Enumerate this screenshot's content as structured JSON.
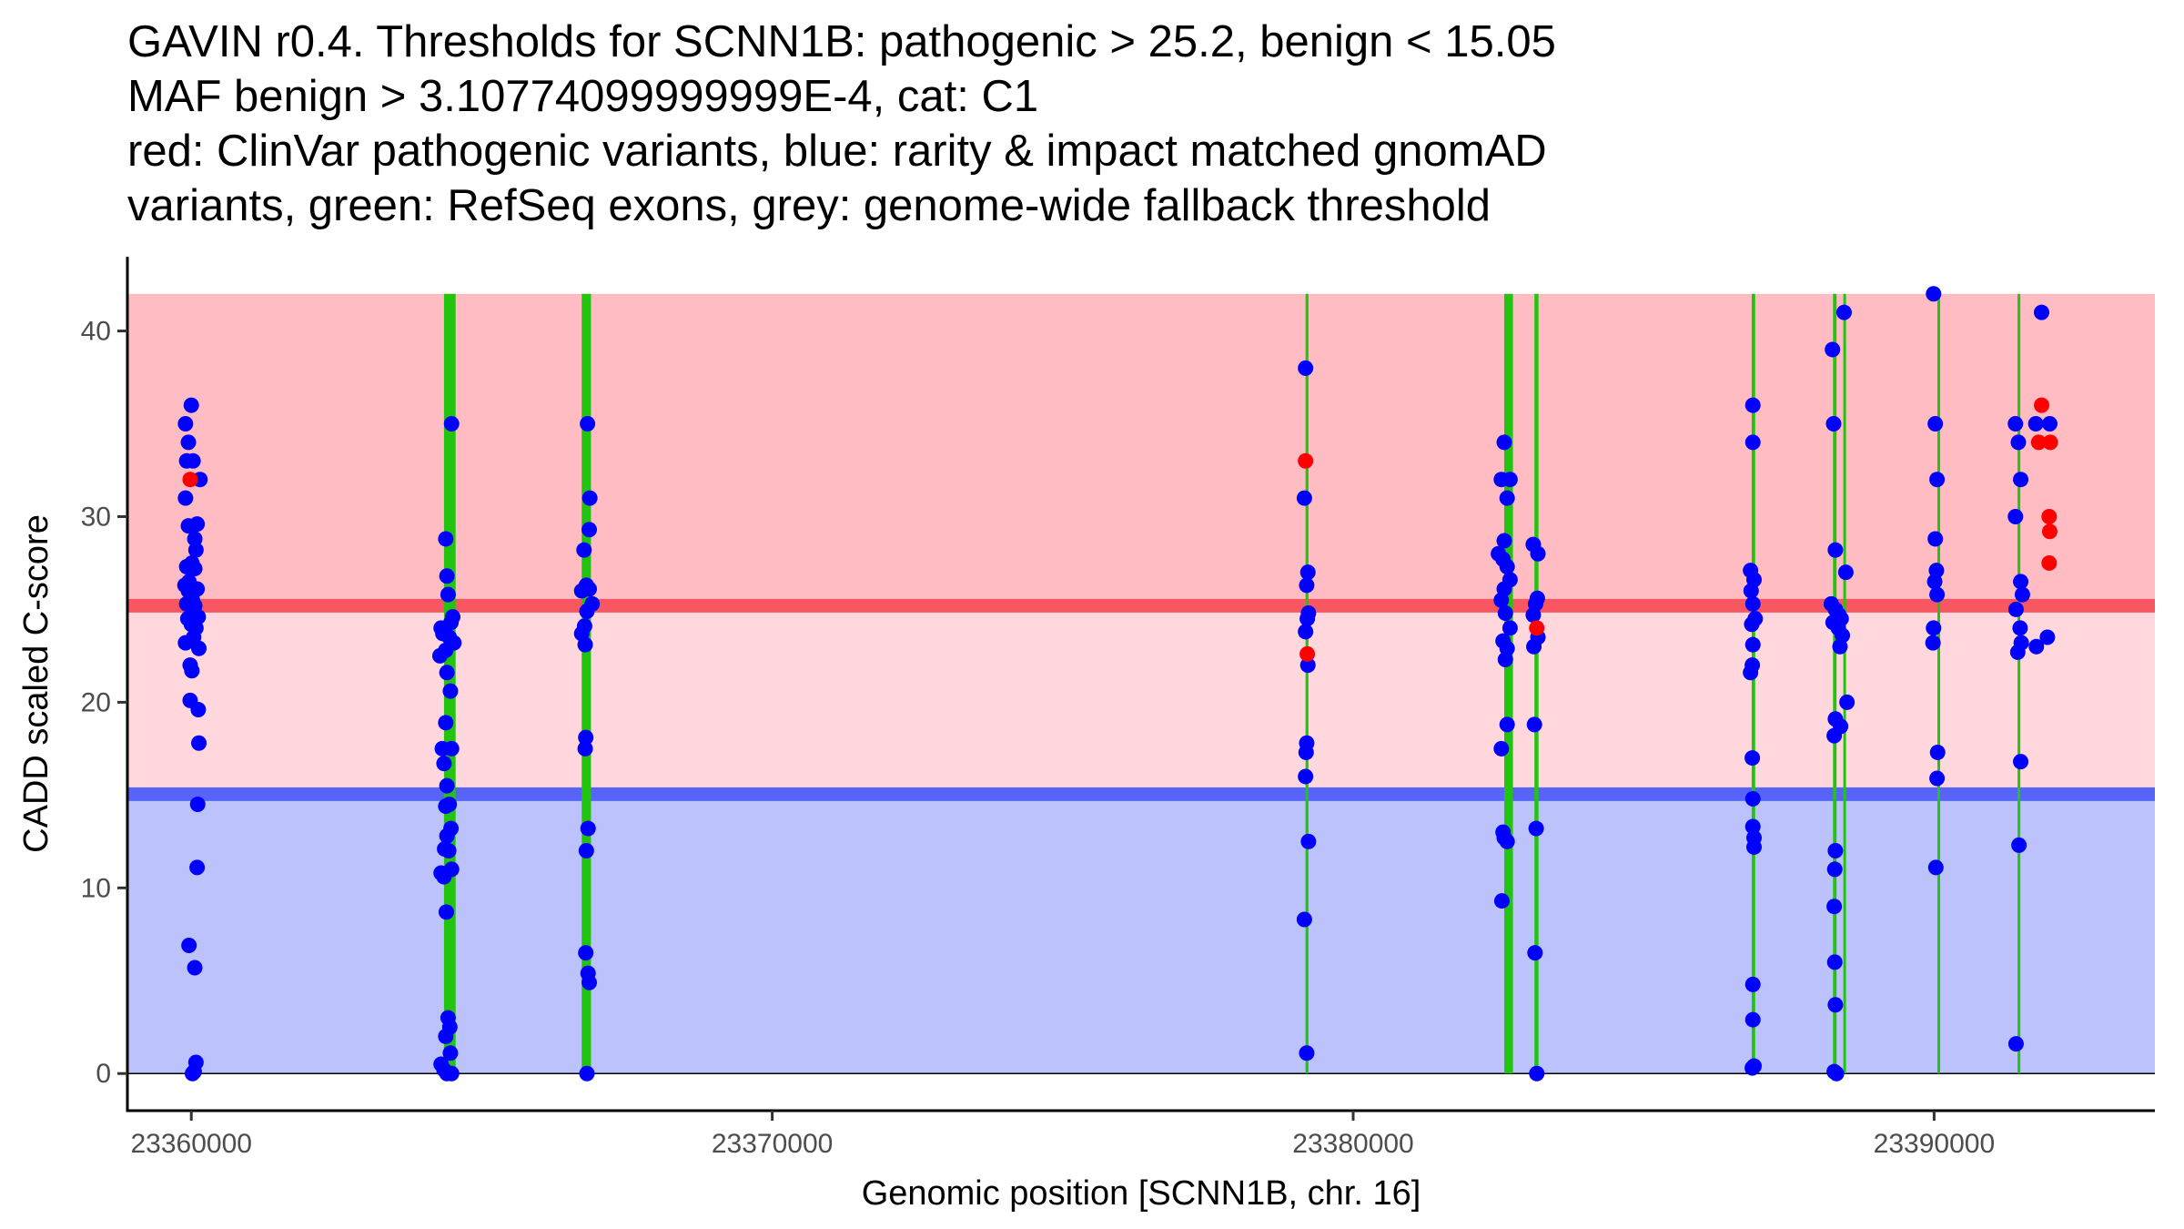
{
  "chart_data": {
    "type": "scatter",
    "title_lines": [
      "GAVIN r0.4. Thresholds for SCNN1B: pathogenic > 25.2, benign < 15.05",
      "MAF benign > 3.10774099999999E-4, cat: C1",
      "red: ClinVar pathogenic variants, blue: rarity & impact matched gnomAD",
      "variants, green: RefSeq exons, grey: genome-wide fallback threshold"
    ],
    "xlabel": "Genomic position [SCNN1B, chr. 16]",
    "ylabel": "CADD scaled C-score",
    "xlim": [
      23358900,
      23393800
    ],
    "ylim": [
      -2,
      44
    ],
    "x_ticks": [
      23360000,
      23370000,
      23380000,
      23390000
    ],
    "x_tick_labels": [
      "23360000",
      "23370000",
      "23380000",
      "23390000"
    ],
    "y_ticks": [
      0,
      10,
      20,
      30,
      40
    ],
    "y_tick_labels": [
      "0",
      "10",
      "20",
      "30",
      "40"
    ],
    "thresholds": {
      "pathogenic": 25.2,
      "benign": 15.05
    },
    "bands": [
      {
        "name": "pathogenic-zone",
        "y0": 25.2,
        "y1": 42,
        "color": "#ffbcc2"
      },
      {
        "name": "intermediate-zone",
        "y0": 15.05,
        "y1": 25.2,
        "color": "#ffd7dc"
      },
      {
        "name": "benign-zone",
        "y0": 0,
        "y1": 15.05,
        "color": "#bcc2fb"
      }
    ],
    "threshold_lines": [
      {
        "name": "pathogenic-threshold-line",
        "y": 25.2,
        "color": "#f85661"
      },
      {
        "name": "benign-threshold-line",
        "y": 15.05,
        "color": "#5764f8"
      }
    ],
    "exon_color": "#22c40f",
    "exons": [
      {
        "start": 23364350,
        "end": 23364550
      },
      {
        "start": 23366720,
        "end": 23366880
      },
      {
        "start": 23379180,
        "end": 23379230
      },
      {
        "start": 23382600,
        "end": 23382750
      },
      {
        "start": 23383120,
        "end": 23383190
      },
      {
        "start": 23386860,
        "end": 23386920
      },
      {
        "start": 23388260,
        "end": 23388320
      },
      {
        "start": 23388440,
        "end": 23388480
      },
      {
        "start": 23390060,
        "end": 23390100
      },
      {
        "start": 23391440,
        "end": 23391480
      }
    ],
    "series": [
      {
        "name": "gnomAD matched variants",
        "color": "#0000ff",
        "points": [
          [
            23359900,
            35
          ],
          [
            23360000,
            36
          ],
          [
            23359950,
            34
          ],
          [
            23359920,
            33
          ],
          [
            23360030,
            33
          ],
          [
            23359900,
            31
          ],
          [
            23360150,
            32
          ],
          [
            23359950,
            29.5
          ],
          [
            23360100,
            29.6
          ],
          [
            23360060,
            28.8
          ],
          [
            23360080,
            28.2
          ],
          [
            23360010,
            27.5
          ],
          [
            23359920,
            27.3
          ],
          [
            23360060,
            27.2
          ],
          [
            23359960,
            26.5
          ],
          [
            23359890,
            26.3
          ],
          [
            23359950,
            26
          ],
          [
            23360100,
            26.1
          ],
          [
            23360020,
            25.5
          ],
          [
            23359920,
            25.3
          ],
          [
            23360060,
            25.2
          ],
          [
            23360120,
            24.6
          ],
          [
            23359940,
            24.5
          ],
          [
            23360000,
            24.2
          ],
          [
            23360080,
            24
          ],
          [
            23359900,
            23.2
          ],
          [
            23360040,
            23.5
          ],
          [
            23360130,
            22.9
          ],
          [
            23359980,
            22
          ],
          [
            23360010,
            21.7
          ],
          [
            23359980,
            20.1
          ],
          [
            23360120,
            19.6
          ],
          [
            23360130,
            17.8
          ],
          [
            23360110,
            14.5
          ],
          [
            23360100,
            11.1
          ],
          [
            23359960,
            6.9
          ],
          [
            23360060,
            5.7
          ],
          [
            23360080,
            0.6
          ],
          [
            23360050,
            0.1
          ],
          [
            23360020,
            0
          ],
          [
            23364480,
            35
          ],
          [
            23364380,
            28.8
          ],
          [
            23364400,
            26.8
          ],
          [
            23364420,
            25.8
          ],
          [
            23364500,
            24.6
          ],
          [
            23364470,
            24.3
          ],
          [
            23364300,
            24
          ],
          [
            23364330,
            23.7
          ],
          [
            23364440,
            23.5
          ],
          [
            23364520,
            23.2
          ],
          [
            23364380,
            22.8
          ],
          [
            23364280,
            22.5
          ],
          [
            23364400,
            21.6
          ],
          [
            23364460,
            20.6
          ],
          [
            23364380,
            18.9
          ],
          [
            23364320,
            17.5
          ],
          [
            23364480,
            17.5
          ],
          [
            23364350,
            16.7
          ],
          [
            23364400,
            15.5
          ],
          [
            23364440,
            14.5
          ],
          [
            23364380,
            14.4
          ],
          [
            23364470,
            13.2
          ],
          [
            23364400,
            12.8
          ],
          [
            23364360,
            12.1
          ],
          [
            23364430,
            12
          ],
          [
            23364300,
            10.8
          ],
          [
            23364350,
            10.6
          ],
          [
            23364480,
            11
          ],
          [
            23364390,
            8.7
          ],
          [
            23364420,
            3
          ],
          [
            23364450,
            2.5
          ],
          [
            23364380,
            2
          ],
          [
            23364460,
            1.1
          ],
          [
            23364300,
            0.5
          ],
          [
            23364350,
            0.2
          ],
          [
            23364400,
            0
          ],
          [
            23364480,
            0
          ],
          [
            23366820,
            35
          ],
          [
            23366860,
            31
          ],
          [
            23366850,
            29.3
          ],
          [
            23366760,
            28.2
          ],
          [
            23366800,
            26.3
          ],
          [
            23366850,
            26.1
          ],
          [
            23366720,
            26
          ],
          [
            23366900,
            25.3
          ],
          [
            23366810,
            24.9
          ],
          [
            23366770,
            24.1
          ],
          [
            23366720,
            23.7
          ],
          [
            23366780,
            23.1
          ],
          [
            23366790,
            18.1
          ],
          [
            23366780,
            17.5
          ],
          [
            23366830,
            13.2
          ],
          [
            23366800,
            12
          ],
          [
            23366790,
            6.5
          ],
          [
            23366830,
            5.4
          ],
          [
            23366850,
            4.9
          ],
          [
            23366810,
            0
          ],
          [
            23379180,
            38
          ],
          [
            23379160,
            31
          ],
          [
            23379220,
            27
          ],
          [
            23379200,
            26.3
          ],
          [
            23379230,
            24.8
          ],
          [
            23379210,
            24.5
          ],
          [
            23379180,
            23.8
          ],
          [
            23379220,
            22
          ],
          [
            23379200,
            17.8
          ],
          [
            23379190,
            17.3
          ],
          [
            23379180,
            16
          ],
          [
            23379230,
            12.5
          ],
          [
            23379160,
            8.3
          ],
          [
            23379200,
            1.1
          ],
          [
            23382600,
            34
          ],
          [
            23382550,
            32
          ],
          [
            23382700,
            32
          ],
          [
            23382650,
            31
          ],
          [
            23382600,
            28.7
          ],
          [
            23382500,
            28
          ],
          [
            23382580,
            27.7
          ],
          [
            23382650,
            27.3
          ],
          [
            23382700,
            26.6
          ],
          [
            23382600,
            26.1
          ],
          [
            23382550,
            25.5
          ],
          [
            23382620,
            24.8
          ],
          [
            23382700,
            24
          ],
          [
            23382580,
            23.3
          ],
          [
            23382650,
            22.9
          ],
          [
            23382620,
            22.3
          ],
          [
            23382550,
            17.5
          ],
          [
            23382650,
            18.8
          ],
          [
            23382580,
            13
          ],
          [
            23382650,
            12.5
          ],
          [
            23382600,
            12.7
          ],
          [
            23382560,
            9.3
          ],
          [
            23383100,
            28.5
          ],
          [
            23383180,
            28
          ],
          [
            23383170,
            25.6
          ],
          [
            23383140,
            25.3
          ],
          [
            23383100,
            24.7
          ],
          [
            23383180,
            23.5
          ],
          [
            23383110,
            23
          ],
          [
            23383120,
            18.8
          ],
          [
            23383150,
            13.2
          ],
          [
            23383130,
            6.5
          ],
          [
            23383160,
            0
          ],
          [
            23386880,
            36
          ],
          [
            23386880,
            34
          ],
          [
            23386840,
            27.1
          ],
          [
            23386900,
            26.6
          ],
          [
            23386850,
            26
          ],
          [
            23386880,
            25.3
          ],
          [
            23386920,
            24.5
          ],
          [
            23386860,
            24.2
          ],
          [
            23386880,
            23.1
          ],
          [
            23386870,
            22
          ],
          [
            23386840,
            21.6
          ],
          [
            23386870,
            17
          ],
          [
            23386880,
            14.8
          ],
          [
            23386880,
            13.3
          ],
          [
            23386900,
            12.7
          ],
          [
            23386900,
            12.2
          ],
          [
            23386880,
            4.8
          ],
          [
            23386880,
            2.9
          ],
          [
            23386900,
            0.4
          ],
          [
            23386870,
            0.3
          ],
          [
            23388250,
            39
          ],
          [
            23388270,
            35
          ],
          [
            23388300,
            28.2
          ],
          [
            23388450,
            41
          ],
          [
            23388480,
            27
          ],
          [
            23388230,
            25.3
          ],
          [
            23388300,
            25
          ],
          [
            23388360,
            24.7
          ],
          [
            23388400,
            24.5
          ],
          [
            23388260,
            24.3
          ],
          [
            23388350,
            24
          ],
          [
            23388420,
            23.6
          ],
          [
            23388380,
            23
          ],
          [
            23388500,
            20
          ],
          [
            23388300,
            19.1
          ],
          [
            23388390,
            18.7
          ],
          [
            23388280,
            18.2
          ],
          [
            23388300,
            12
          ],
          [
            23388290,
            11
          ],
          [
            23388280,
            9
          ],
          [
            23388290,
            6
          ],
          [
            23388300,
            3.7
          ],
          [
            23388280,
            0.1
          ],
          [
            23388320,
            0
          ],
          [
            23389990,
            42
          ],
          [
            23390020,
            35
          ],
          [
            23390050,
            32
          ],
          [
            23390020,
            28.8
          ],
          [
            23390040,
            27.1
          ],
          [
            23390010,
            26.5
          ],
          [
            23390050,
            25.8
          ],
          [
            23389990,
            24
          ],
          [
            23389980,
            23.2
          ],
          [
            23390060,
            17.3
          ],
          [
            23390050,
            15.9
          ],
          [
            23390030,
            11.1
          ],
          [
            23391400,
            35
          ],
          [
            23391450,
            34
          ],
          [
            23391490,
            32
          ],
          [
            23391400,
            30
          ],
          [
            23391490,
            26.5
          ],
          [
            23391520,
            25.8
          ],
          [
            23391410,
            25
          ],
          [
            23391480,
            24
          ],
          [
            23391500,
            23.2
          ],
          [
            23391440,
            22.7
          ],
          [
            23391760,
            23
          ],
          [
            23391950,
            23.5
          ],
          [
            23391490,
            16.8
          ],
          [
            23391460,
            12.3
          ],
          [
            23391410,
            1.6
          ],
          [
            23391750,
            35
          ],
          [
            23391990,
            35
          ],
          [
            23391850,
            41
          ]
        ]
      },
      {
        "name": "ClinVar pathogenic variants",
        "color": "#ff0000",
        "points": [
          [
            23359980,
            32
          ],
          [
            23379180,
            33
          ],
          [
            23379210,
            22.6
          ],
          [
            23383160,
            24
          ],
          [
            23391850,
            36
          ],
          [
            23391800,
            34
          ],
          [
            23392000,
            34
          ],
          [
            23391980,
            30
          ],
          [
            23391990,
            29.2
          ],
          [
            23391980,
            27.5
          ]
        ]
      }
    ]
  }
}
